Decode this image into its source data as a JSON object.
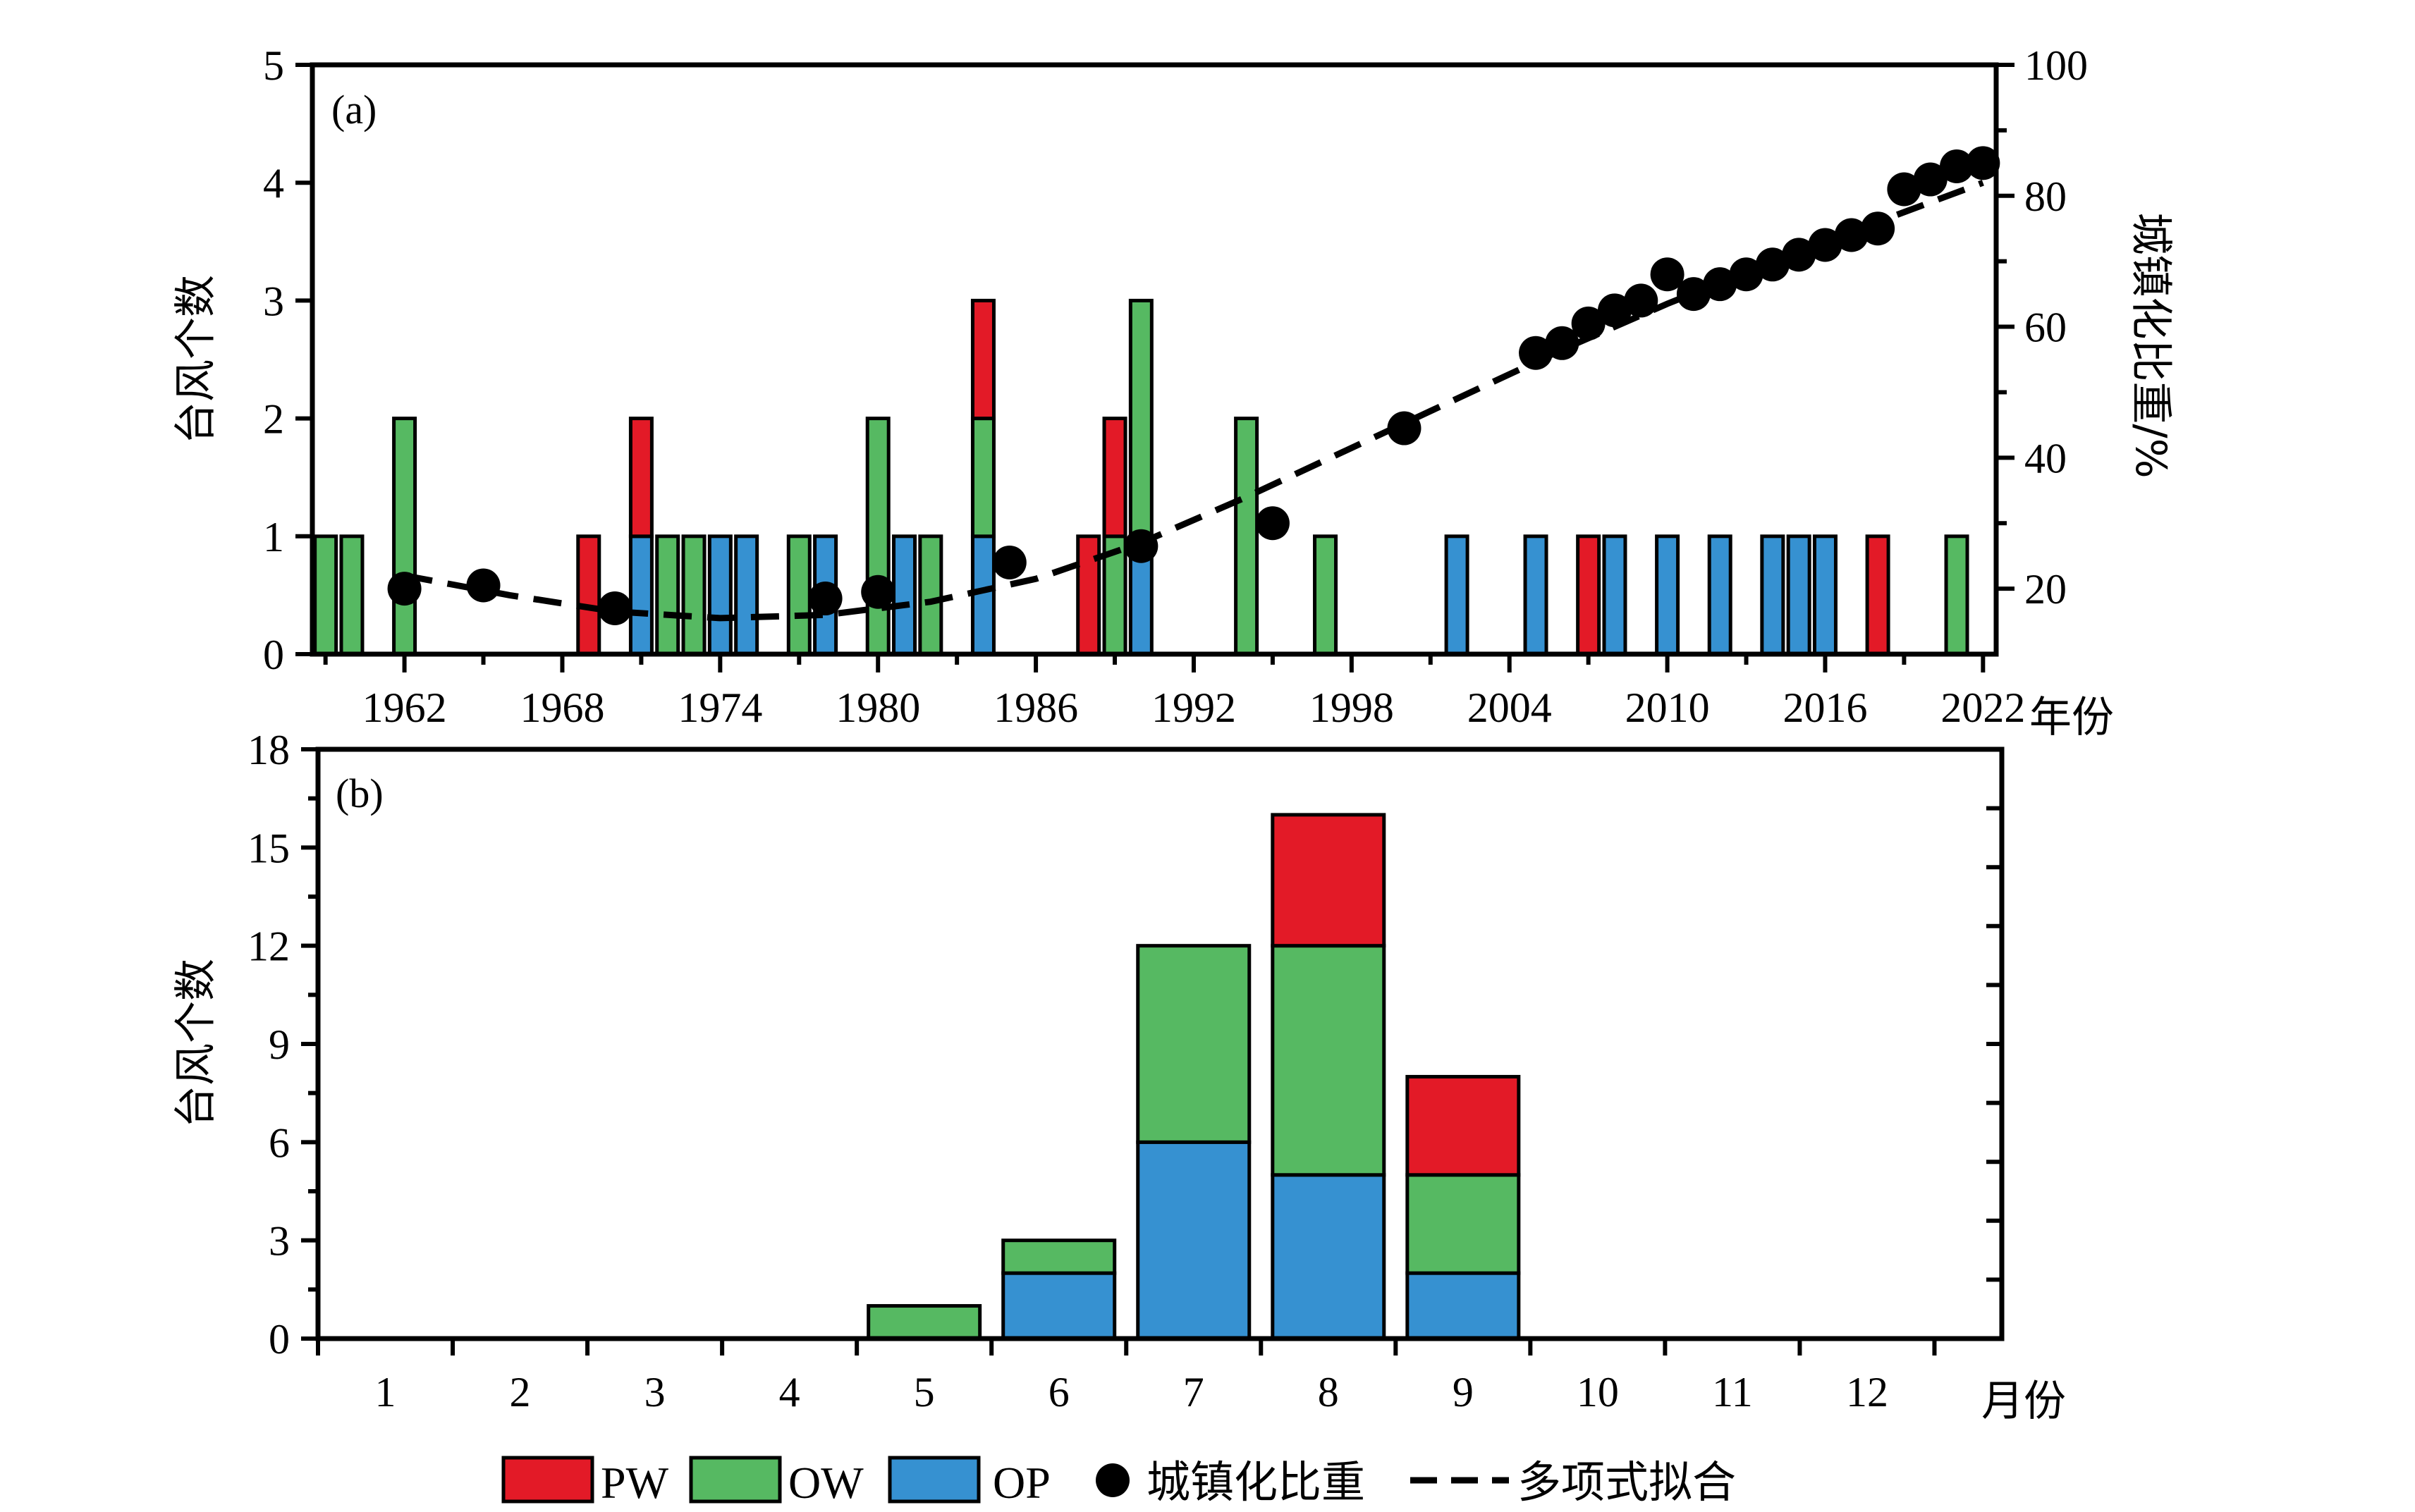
{
  "colors": {
    "PW": "#e31a27",
    "OW": "#56b962",
    "OP": "#3691d1",
    "point": "#000000"
  },
  "legend": {
    "pw": "PW",
    "ow": "OW",
    "op": "OP",
    "urban": "城镇化比重",
    "fit": "多项式拟合"
  },
  "chart_data": [
    {
      "panel": "(a)",
      "type": "bar",
      "stacked": true,
      "ylabel": "台风个数",
      "y2label": "城镇化比重/%",
      "xlabel": "年份",
      "ylim": [
        0,
        5
      ],
      "y2lim": [
        10,
        100
      ],
      "yticks": [
        "0",
        "1",
        "2",
        "3",
        "4",
        "5"
      ],
      "y2ticks": [
        "20",
        "40",
        "60",
        "80",
        "100"
      ],
      "xlim": [
        1958.5,
        2022.5
      ],
      "xticks": [
        "1962",
        "1968",
        "1974",
        "1980",
        "1986",
        "1992",
        "1998",
        "2004",
        "2010",
        "2016",
        "2022"
      ],
      "series": [
        {
          "name": "OP",
          "points": [
            {
              "x": 1971,
              "y": 1
            },
            {
              "x": 1974,
              "y": 1
            },
            {
              "x": 1975,
              "y": 1
            },
            {
              "x": 1978,
              "y": 1
            },
            {
              "x": 1981,
              "y": 1
            },
            {
              "x": 1984,
              "y": 1
            },
            {
              "x": 1990,
              "y": 1
            },
            {
              "x": 2002,
              "y": 1
            },
            {
              "x": 2005,
              "y": 1
            },
            {
              "x": 2008,
              "y": 1
            },
            {
              "x": 2010,
              "y": 1
            },
            {
              "x": 2012,
              "y": 1
            },
            {
              "x": 2014,
              "y": 1
            },
            {
              "x": 2015,
              "y": 1
            },
            {
              "x": 2016,
              "y": 1
            }
          ]
        },
        {
          "name": "OW",
          "points": [
            {
              "x": 1959,
              "y": 1
            },
            {
              "x": 1960,
              "y": 1
            },
            {
              "x": 1962,
              "y": 2
            },
            {
              "x": 1972,
              "y": 1
            },
            {
              "x": 1973,
              "y": 1
            },
            {
              "x": 1977,
              "y": 1
            },
            {
              "x": 1980,
              "y": 2
            },
            {
              "x": 1982,
              "y": 1
            },
            {
              "x": 1984,
              "y": 1
            },
            {
              "x": 1989,
              "y": 1
            },
            {
              "x": 1990,
              "y": 2
            },
            {
              "x": 1994,
              "y": 2
            },
            {
              "x": 1997,
              "y": 1
            },
            {
              "x": 2021,
              "y": 1
            }
          ]
        },
        {
          "name": "PW",
          "points": [
            {
              "x": 1969,
              "y": 1
            },
            {
              "x": 1971,
              "y": 1
            },
            {
              "x": 1984,
              "y": 1
            },
            {
              "x": 1988,
              "y": 1
            },
            {
              "x": 1989,
              "y": 1
            },
            {
              "x": 2007,
              "y": 1
            },
            {
              "x": 2018,
              "y": 1
            }
          ]
        }
      ],
      "urbanization": {
        "name": "城镇化比重",
        "points": [
          [
            1962,
            20
          ],
          [
            1965,
            20.5
          ],
          [
            1970,
            17
          ],
          [
            1978,
            18.5
          ],
          [
            1980,
            19.5
          ],
          [
            1985,
            24
          ],
          [
            1990,
            26.5
          ],
          [
            1995,
            30
          ],
          [
            2000,
            44.5
          ],
          [
            2005,
            56
          ],
          [
            2006,
            57.5
          ],
          [
            2007,
            60.5
          ],
          [
            2008,
            62.5
          ],
          [
            2009,
            64
          ],
          [
            2010,
            68
          ],
          [
            2011,
            65
          ],
          [
            2012,
            66.5
          ],
          [
            2013,
            68
          ],
          [
            2014,
            69.5
          ],
          [
            2015,
            71
          ],
          [
            2016,
            72.5
          ],
          [
            2017,
            74
          ],
          [
            2018,
            75
          ],
          [
            2019,
            81
          ],
          [
            2020,
            82.5
          ],
          [
            2021,
            84.5
          ],
          [
            2022,
            85
          ]
        ]
      },
      "fit": {
        "name": "多项式拟合",
        "points": [
          [
            1962,
            22
          ],
          [
            1966,
            19
          ],
          [
            1970,
            16.5
          ],
          [
            1974,
            15.5
          ],
          [
            1978,
            16
          ],
          [
            1982,
            18
          ],
          [
            1986,
            21.5
          ],
          [
            1990,
            27
          ],
          [
            1994,
            34
          ],
          [
            1998,
            41.5
          ],
          [
            2002,
            49
          ],
          [
            2006,
            56.5
          ],
          [
            2010,
            63.5
          ],
          [
            2014,
            70
          ],
          [
            2018,
            76
          ],
          [
            2022,
            82
          ]
        ]
      }
    },
    {
      "panel": "(b)",
      "type": "bar",
      "stacked": true,
      "ylabel": "台风个数",
      "xlabel": "月份",
      "ylim": [
        0,
        18
      ],
      "yticks": [
        "0",
        "3",
        "6",
        "9",
        "12",
        "15",
        "18"
      ],
      "categories": [
        "1",
        "2",
        "3",
        "4",
        "5",
        "6",
        "7",
        "8",
        "9",
        "10",
        "11",
        "12"
      ],
      "series": [
        {
          "name": "OP",
          "values": [
            0,
            0,
            0,
            0,
            0,
            2,
            6,
            5,
            2,
            0,
            0,
            0
          ]
        },
        {
          "name": "OW",
          "values": [
            0,
            0,
            0,
            0,
            1,
            1,
            6,
            7,
            3,
            0,
            0,
            0
          ]
        },
        {
          "name": "PW",
          "values": [
            0,
            0,
            0,
            0,
            0,
            0,
            0,
            4,
            3,
            0,
            0,
            0
          ]
        }
      ]
    }
  ]
}
